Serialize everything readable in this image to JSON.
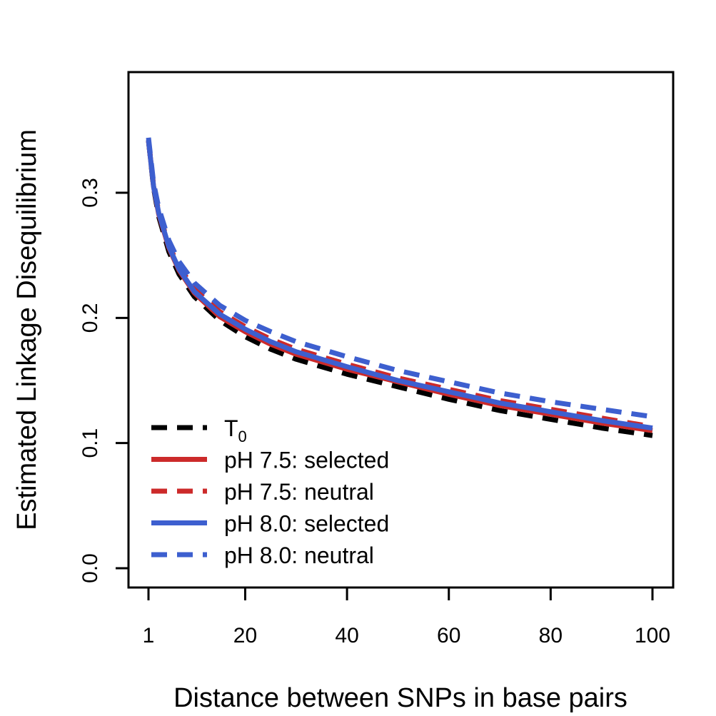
{
  "chart_data": {
    "type": "line",
    "title": "",
    "xlabel": "Distance between SNPs in base pairs",
    "ylabel": "Estimated Linkage Disequilibrium",
    "xlim": [
      1,
      100
    ],
    "ylim": [
      0.0,
      0.39
    ],
    "x_ticks": [
      1,
      20,
      40,
      60,
      80,
      100
    ],
    "x_tick_labels": [
      "1",
      "20",
      "40",
      "60",
      "80",
      "100"
    ],
    "y_ticks": [
      0.0,
      0.1,
      0.2,
      0.3
    ],
    "y_tick_labels": [
      "0.0",
      "0.1",
      "0.2",
      "0.3"
    ],
    "grid": false,
    "legend_position": "bottom-left",
    "x": [
      1,
      2,
      3,
      5,
      7,
      10,
      15,
      20,
      25,
      30,
      40,
      50,
      60,
      70,
      80,
      90,
      100
    ],
    "series": [
      {
        "name": "T",
        "name_subscript": "0",
        "color": "#000000",
        "dash": "dashed",
        "values": [
          0.342,
          0.304,
          0.281,
          0.253,
          0.235,
          0.217,
          0.198,
          0.185,
          0.175,
          0.167,
          0.155,
          0.145,
          0.135,
          0.126,
          0.119,
          0.112,
          0.106
        ]
      },
      {
        "name": "pH 7.5: selected",
        "color": "#cc2a2a",
        "dash": "solid",
        "values": [
          0.342,
          0.305,
          0.283,
          0.256,
          0.238,
          0.22,
          0.201,
          0.189,
          0.179,
          0.171,
          0.159,
          0.149,
          0.139,
          0.13,
          0.123,
          0.116,
          0.11
        ]
      },
      {
        "name": "pH 7.5: neutral",
        "color": "#cc2a2a",
        "dash": "dashed",
        "values": [
          0.342,
          0.306,
          0.285,
          0.258,
          0.241,
          0.223,
          0.205,
          0.193,
          0.183,
          0.175,
          0.163,
          0.152,
          0.143,
          0.134,
          0.127,
          0.12,
          0.113
        ]
      },
      {
        "name": "pH 8.0: selected",
        "color": "#3d5fcf",
        "dash": "solid",
        "values": [
          0.342,
          0.305,
          0.284,
          0.257,
          0.239,
          0.221,
          0.203,
          0.191,
          0.181,
          0.173,
          0.161,
          0.15,
          0.141,
          0.132,
          0.125,
          0.118,
          0.112
        ]
      },
      {
        "name": "pH 8.0: neutral",
        "color": "#3d5fcf",
        "dash": "dashed",
        "values": [
          0.344,
          0.308,
          0.288,
          0.262,
          0.245,
          0.228,
          0.21,
          0.198,
          0.189,
          0.181,
          0.169,
          0.158,
          0.149,
          0.14,
          0.133,
          0.127,
          0.121
        ]
      }
    ]
  }
}
